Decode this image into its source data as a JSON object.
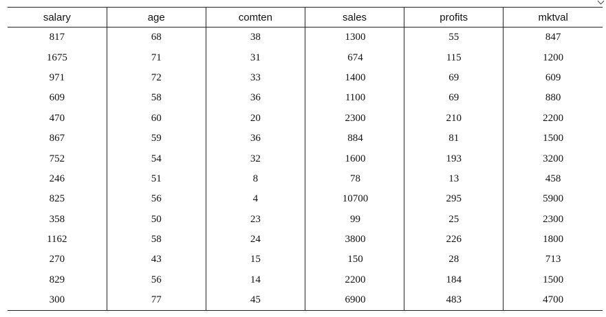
{
  "table": {
    "columns": [
      "salary",
      "age",
      "comten",
      "sales",
      "profits",
      "mktval"
    ],
    "rows": [
      [
        "817",
        "68",
        "38",
        "1300",
        "55",
        "847"
      ],
      [
        "1675",
        "71",
        "31",
        "674",
        "115",
        "1200"
      ],
      [
        "971",
        "72",
        "33",
        "1400",
        "69",
        "609"
      ],
      [
        "609",
        "58",
        "36",
        "1100",
        "69",
        "880"
      ],
      [
        "470",
        "60",
        "20",
        "2300",
        "210",
        "2200"
      ],
      [
        "867",
        "59",
        "36",
        "884",
        "81",
        "1500"
      ],
      [
        "752",
        "54",
        "32",
        "1600",
        "193",
        "3200"
      ],
      [
        "246",
        "51",
        "8",
        "78",
        "13",
        "458"
      ],
      [
        "825",
        "56",
        "4",
        "10700",
        "295",
        "5900"
      ],
      [
        "358",
        "50",
        "23",
        "99",
        "25",
        "2300"
      ],
      [
        "1162",
        "58",
        "24",
        "3800",
        "226",
        "1800"
      ],
      [
        "270",
        "43",
        "15",
        "150",
        "28",
        "713"
      ],
      [
        "829",
        "56",
        "14",
        "2200",
        "184",
        "1500"
      ],
      [
        "300",
        "77",
        "45",
        "6900",
        "483",
        "4700"
      ]
    ]
  }
}
